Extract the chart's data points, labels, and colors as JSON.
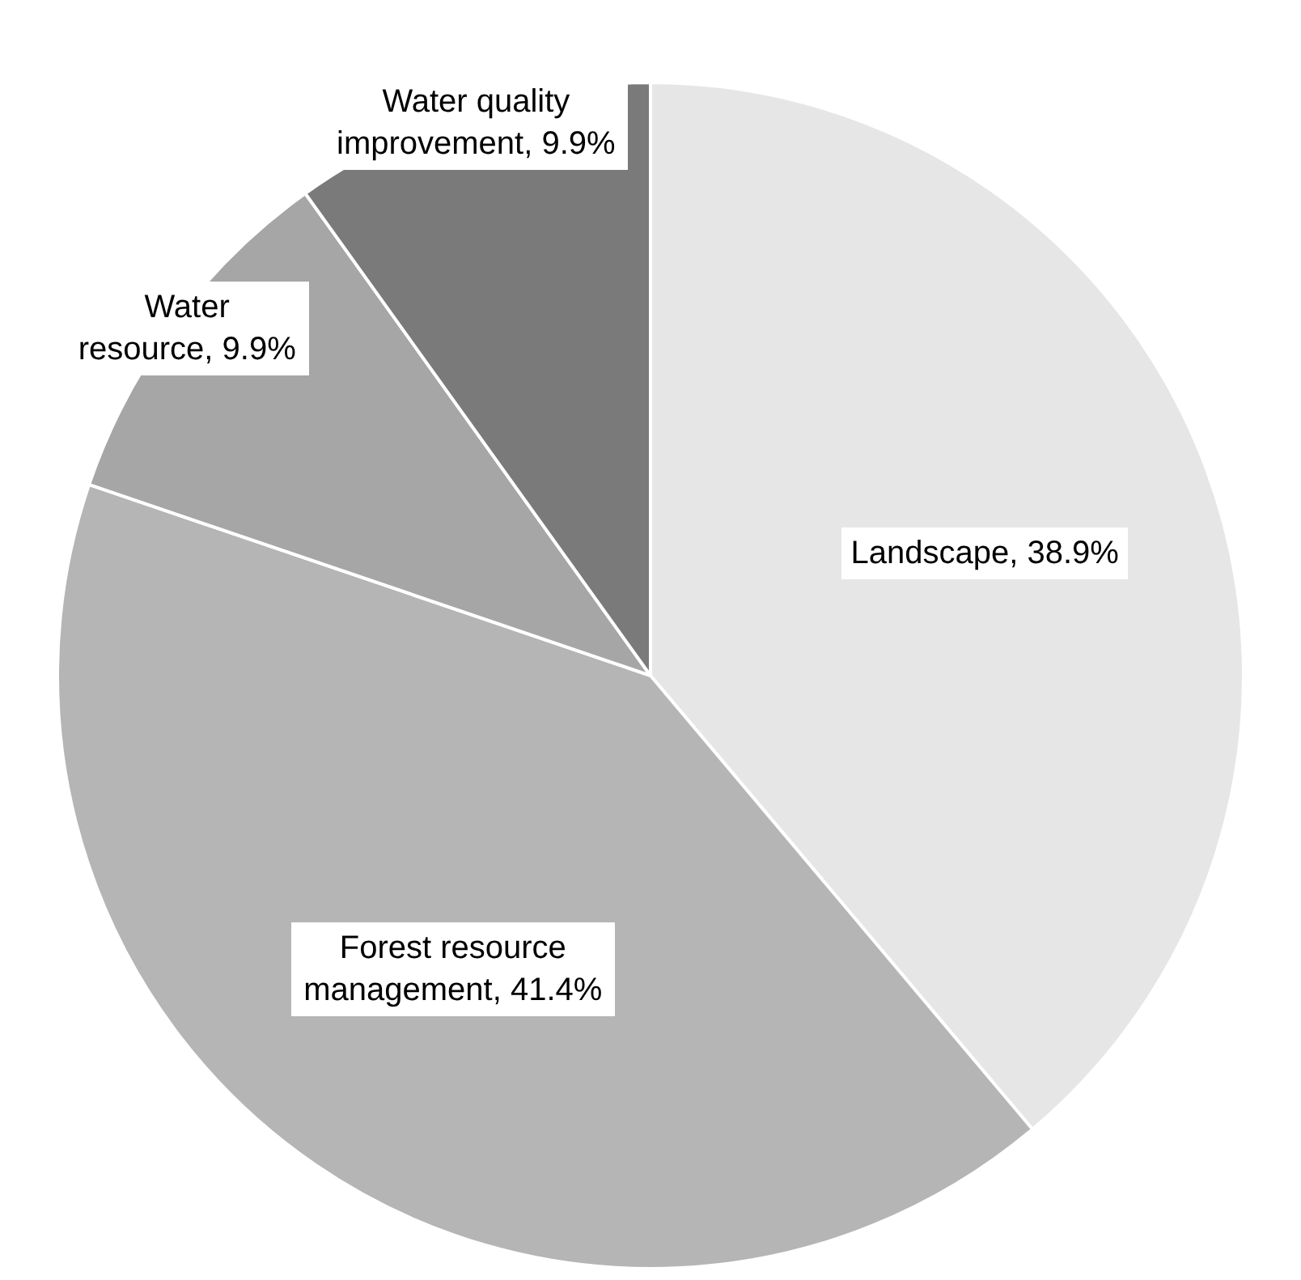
{
  "chart_data": {
    "type": "pie",
    "categories": [
      "Landscape",
      "Forest resource management",
      "Water resource",
      "Water quality improvement"
    ],
    "values": [
      38.9,
      41.4,
      9.9,
      9.9
    ],
    "value_labels": [
      "38.9%",
      "41.4%",
      "9.9%",
      "9.9%"
    ],
    "colors": [
      "#e6e6e6",
      "#b5b5b5",
      "#a6a6a6",
      "#7a7a7a"
    ],
    "legend": false
  }
}
